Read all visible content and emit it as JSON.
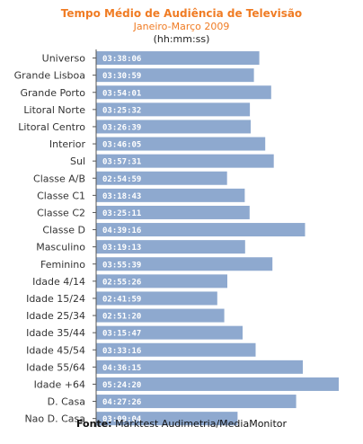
{
  "colors": {
    "title": "#f07c24",
    "bar": "#8ea9cf",
    "bar_label": "#ffffff",
    "axis": "#555555"
  },
  "footer": {
    "prefix": "Fonte:",
    "text": "Marktest Audimetria/MediaMonitor"
  },
  "chart_data": {
    "type": "bar",
    "orientation": "horizontal",
    "title": "Tempo Médio de Audiência  de Televisão",
    "subtitle": "Janeiro-Março 2009",
    "subtitle2": "(hh:mm:ss)",
    "categories": [
      "Universo",
      "Grande Lisboa",
      "Grande Porto",
      "Litoral Norte",
      "Litoral Centro",
      "Interior",
      "Sul",
      "Classe A/B",
      "Classe C1",
      "Classe C2",
      "Classe D",
      "Masculino",
      "Feminino",
      "Idade 4/14",
      "Idade 15/24",
      "Idade 25/34",
      "Idade 35/44",
      "Idade 45/54",
      "Idade 55/64",
      "Idade +64",
      "D. Casa",
      "Nao D. Casa"
    ],
    "values": [
      "03:38:06",
      "03:30:59",
      "03:54:01",
      "03:25:32",
      "03:26:39",
      "03:46:05",
      "03:57:31",
      "02:54:59",
      "03:18:43",
      "03:25:11",
      "04:39:16",
      "03:19:13",
      "03:55:39",
      "02:55:26",
      "02:41:59",
      "02:51:20",
      "03:15:47",
      "03:33:16",
      "04:36:15",
      "05:24:20",
      "04:27:26",
      "03:09:04"
    ],
    "grid": false,
    "legend": "none"
  }
}
